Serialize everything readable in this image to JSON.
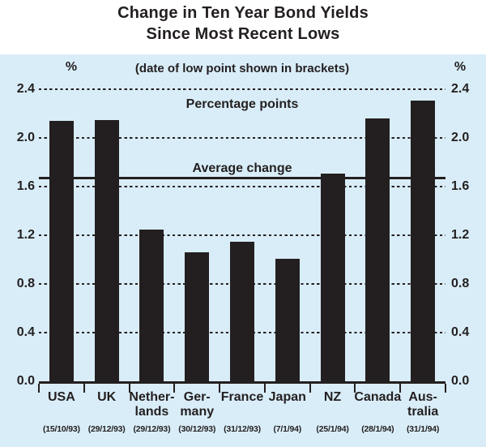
{
  "title": {
    "line1": "Change in Ten Year Bond Yields",
    "line2": "Since Most Recent Lows"
  },
  "subtitle": "(date of low point shown in brackets)",
  "axis_unit_left": "%",
  "axis_unit_right": "%",
  "annotation_top": "Percentage points",
  "annotation_average": "Average change",
  "chart_data": {
    "type": "bar",
    "title": "Change in Ten Year Bond Yields Since Most Recent Lows",
    "subtitle": "(date of low point shown in brackets)",
    "ylabel_left": "%",
    "ylabel_right": "%",
    "ylim": [
      0.0,
      2.4
    ],
    "yticks": [
      0.0,
      0.4,
      0.8,
      1.2,
      1.6,
      2.0,
      2.4
    ],
    "grid": "horizontal-dashed",
    "legend_position": "none",
    "categories": [
      "USA",
      "UK",
      "Netherlands",
      "Germany",
      "France",
      "Japan",
      "NZ",
      "Canada",
      "Australia"
    ],
    "category_display_lines": [
      [
        "USA"
      ],
      [
        "UK"
      ],
      [
        "Nether-",
        "lands"
      ],
      [
        "Ger-",
        "many"
      ],
      [
        "France"
      ],
      [
        "Japan"
      ],
      [
        "NZ"
      ],
      [
        "Canada"
      ],
      [
        "Aus-",
        "tralia"
      ]
    ],
    "low_point_dates": [
      "(15/10/93)",
      "(29/12/93)",
      "(29/12/93)",
      "(30/12/93)",
      "(31/12/93)",
      "(7/1/94)",
      "(25/1/94)",
      "(28/1/94)",
      "(31/1/94)"
    ],
    "values": [
      2.14,
      2.15,
      1.25,
      1.06,
      1.15,
      1.01,
      1.71,
      2.16,
      2.31
    ],
    "average_change": 1.66,
    "average_line_value": 1.67,
    "annotations": [
      "Percentage points",
      "Average change"
    ]
  },
  "colors": {
    "panel_background": "#d9edf8",
    "bar": "#231f20",
    "line": "#231f20",
    "text": "#231f20"
  }
}
